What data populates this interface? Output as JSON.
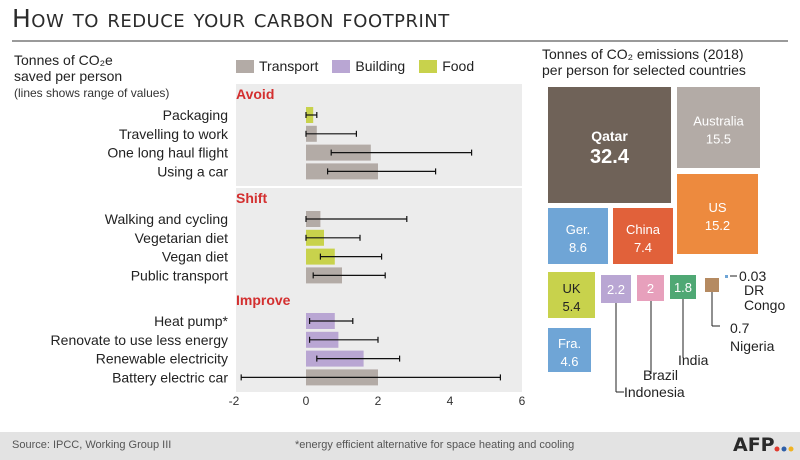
{
  "header": {
    "title": "How to reduce your carbon footprint"
  },
  "left_subtitle": {
    "line1": "Tonnes of CO₂e",
    "line2": "saved per person",
    "line3": "(lines shows range of values)"
  },
  "right_subtitle": {
    "line1": "Tonnes of CO₂ emissions (2018)",
    "line2": "per person for selected countries"
  },
  "legend": [
    {
      "label": "Transport",
      "color": "#b3aba6"
    },
    {
      "label": "Building",
      "color": "#b9a6d3"
    },
    {
      "label": "Food",
      "color": "#c8d24c"
    }
  ],
  "footer": {
    "source": "Source: IPCC, Working Group III",
    "note": "*energy efficient alternative for space heating and cooling",
    "logo": "AFP"
  },
  "chart_data": [
    {
      "type": "bar",
      "orientation": "horizontal",
      "title": "Tonnes of CO₂e saved per person",
      "xlim": [
        -2,
        6
      ],
      "xticks": [
        -2,
        0,
        2,
        4,
        6
      ],
      "groups": [
        {
          "name": "Avoid",
          "items": [
            {
              "label": "Packaging",
              "category": "Food",
              "value": 0.2,
              "range": [
                0,
                0.3
              ]
            },
            {
              "label": "Travelling to work",
              "category": "Transport",
              "value": 0.3,
              "range": [
                0,
                1.4
              ]
            },
            {
              "label": "One long haul flight",
              "category": "Transport",
              "value": 1.8,
              "range": [
                0.7,
                4.6
              ]
            },
            {
              "label": "Using a car",
              "category": "Transport",
              "value": 2.0,
              "range": [
                0.6,
                3.6
              ]
            }
          ]
        },
        {
          "name": "Shift",
          "items": [
            {
              "label": "Walking and cycling",
              "category": "Transport",
              "value": 0.4,
              "range": [
                0,
                2.8
              ]
            },
            {
              "label": "Vegetarian diet",
              "category": "Food",
              "value": 0.5,
              "range": [
                0,
                1.5
              ]
            },
            {
              "label": "Vegan diet",
              "category": "Food",
              "value": 0.8,
              "range": [
                0.4,
                2.1
              ]
            },
            {
              "label": "Public transport",
              "category": "Transport",
              "value": 1.0,
              "range": [
                0.2,
                2.2
              ]
            }
          ]
        },
        {
          "name": "Improve",
          "items": [
            {
              "label": "Heat pump*",
              "category": "Building",
              "value": 0.8,
              "range": [
                0.1,
                1.3
              ]
            },
            {
              "label": "Renovate to use less energy",
              "category": "Building",
              "value": 0.9,
              "range": [
                0.1,
                2.0
              ]
            },
            {
              "label": "Renewable electricity",
              "category": "Building",
              "value": 1.6,
              "range": [
                0.3,
                2.6
              ]
            },
            {
              "label": "Battery electric car",
              "category": "Transport",
              "value": 2.0,
              "range": [
                -1.8,
                5.4
              ]
            }
          ]
        }
      ]
    },
    {
      "type": "treemap",
      "title": "Tonnes of CO₂ emissions (2018) per person for selected countries",
      "items": [
        {
          "name": "Qatar",
          "value": 32.4,
          "display": "32.4",
          "color": "#6f6258"
        },
        {
          "name": "Australia",
          "value": 15.5,
          "display": "15.5",
          "color": "#b3aba6"
        },
        {
          "name": "US",
          "value": 15.2,
          "display": "15.2",
          "color": "#ed8a3e"
        },
        {
          "name": "Ger.",
          "value": 8.6,
          "display": "8.6",
          "color": "#6fa5d6"
        },
        {
          "name": "China",
          "value": 7.4,
          "display": "7.4",
          "color": "#e1613a"
        },
        {
          "name": "UK",
          "value": 5.4,
          "display": "5.4",
          "color": "#c8d24c"
        },
        {
          "name": "Fra.",
          "value": 4.6,
          "display": "4.6",
          "color": "#6fa5d6"
        },
        {
          "name": "Indonesia",
          "value": 2.2,
          "display": "2.2",
          "color": "#b9a6d3"
        },
        {
          "name": "Brazil",
          "value": 2.0,
          "display": "2",
          "color": "#e7a0bc"
        },
        {
          "name": "India",
          "value": 1.8,
          "display": "1.8",
          "color": "#4fa874"
        },
        {
          "name": "Nigeria",
          "value": 0.7,
          "display": "0.7",
          "color": "#b58a61"
        },
        {
          "name": "DR Congo",
          "value": 0.03,
          "display": "0.03",
          "color": "#6fa5d6"
        }
      ]
    }
  ]
}
